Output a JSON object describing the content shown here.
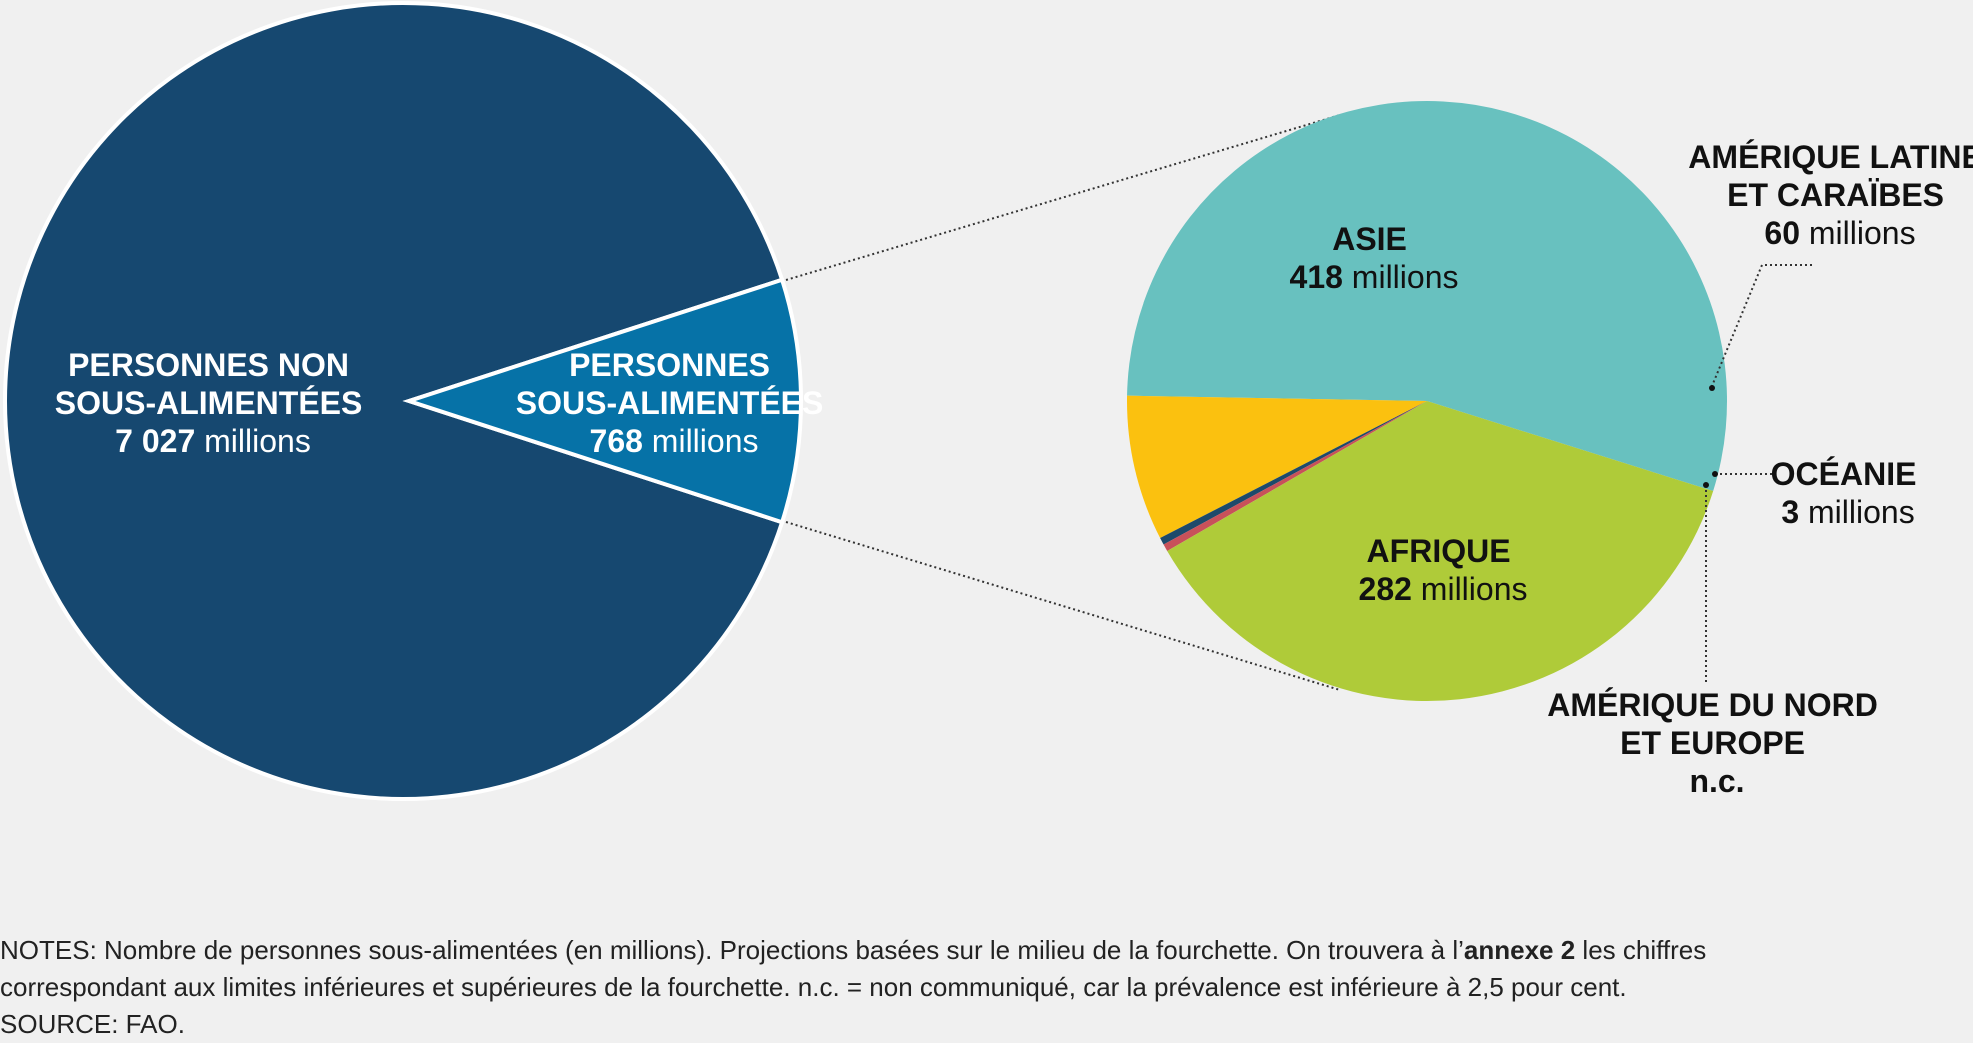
{
  "chart_data": [
    {
      "type": "pie",
      "slices": [
        {
          "label_lines": [
            "PERSONNES NON",
            "SOUS-ALIMENTÉES"
          ],
          "value": 7027,
          "value_text": "7 027",
          "unit": "millions",
          "color": "#164870"
        },
        {
          "label_lines": [
            "PERSONNES",
            "SOUS-ALIMENTÉES"
          ],
          "value": 768,
          "value_text": "768",
          "unit": "millions",
          "color": "#0672a7"
        }
      ]
    },
    {
      "type": "pie",
      "slices": [
        {
          "label_lines": [
            "ASIE"
          ],
          "value": 418,
          "value_text": "418",
          "unit": "millions",
          "color": "#68c1bf"
        },
        {
          "label_lines": [
            "AMÉRIQUE LATINE",
            "ET CARAÏBES"
          ],
          "value": 60,
          "value_text": "60",
          "unit": "millions",
          "color": "#fbc10f"
        },
        {
          "label_lines": [
            "OCÉANIE"
          ],
          "value": 3,
          "value_text": "3",
          "unit": "millions",
          "color": "#1d4a6b"
        },
        {
          "label_lines": [
            "AMÉRIQUE DU NORD",
            "ET EUROPE"
          ],
          "value": null,
          "value_text": "n.c.",
          "unit": "",
          "color": "#c8515a"
        },
        {
          "label_lines": [
            "AFRIQUE"
          ],
          "value": 282,
          "value_text": "282",
          "unit": "millions",
          "color": "#afcb39"
        }
      ]
    }
  ],
  "notes": {
    "line1_a": "NOTES: Nombre de personnes sous-alimentées (en millions). Projections basées sur le milieu de la fourchette. On trouvera à l’",
    "line1_bold": "annexe 2",
    "line1_b": " les chiffres",
    "line2": "correspondant aux limites inférieures et supérieures de la fourchette. n.c. = non communiqué, car la prévalence est inférieure à 2,5 pour cent.",
    "source": "SOURCE: FAO."
  }
}
